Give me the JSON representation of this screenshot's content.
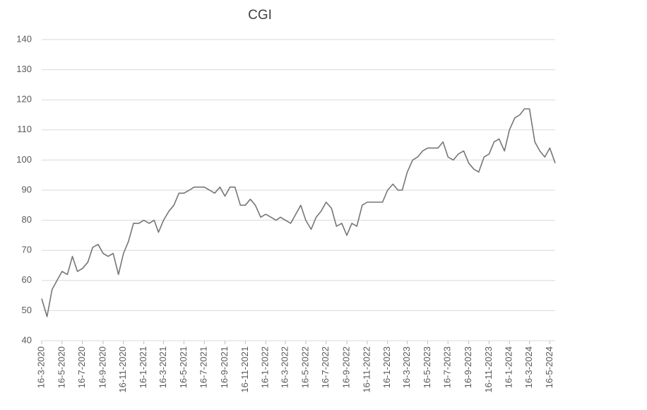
{
  "chart_data": {
    "type": "line",
    "title": "CGI",
    "color": "#767676",
    "grid": true,
    "x": [
      "2020-03-16",
      "2020-04-01",
      "2020-04-16",
      "2020-05-01",
      "2020-05-16",
      "2020-06-01",
      "2020-06-16",
      "2020-07-01",
      "2020-07-16",
      "2020-08-01",
      "2020-08-16",
      "2020-09-01",
      "2020-09-16",
      "2020-10-01",
      "2020-10-16",
      "2020-11-01",
      "2020-11-16",
      "2020-12-01",
      "2020-12-16",
      "2021-01-01",
      "2021-01-16",
      "2021-02-01",
      "2021-02-16",
      "2021-03-01",
      "2021-03-16",
      "2021-04-01",
      "2021-04-16",
      "2021-05-01",
      "2021-05-16",
      "2021-06-01",
      "2021-06-16",
      "2021-07-01",
      "2021-07-16",
      "2021-08-01",
      "2021-08-16",
      "2021-09-01",
      "2021-09-16",
      "2021-10-01",
      "2021-10-16",
      "2021-11-01",
      "2021-11-16",
      "2021-12-01",
      "2021-12-16",
      "2022-01-01",
      "2022-01-16",
      "2022-02-01",
      "2022-02-16",
      "2022-03-01",
      "2022-03-16",
      "2022-04-01",
      "2022-04-16",
      "2022-05-01",
      "2022-05-16",
      "2022-06-01",
      "2022-06-16",
      "2022-07-01",
      "2022-07-16",
      "2022-08-01",
      "2022-08-16",
      "2022-09-01",
      "2022-09-16",
      "2022-10-01",
      "2022-10-16",
      "2022-11-01",
      "2022-11-16",
      "2022-12-01",
      "2022-12-16",
      "2023-01-01",
      "2023-01-16",
      "2023-02-01",
      "2023-02-16",
      "2023-03-01",
      "2023-03-16",
      "2023-04-01",
      "2023-04-16",
      "2023-05-01",
      "2023-05-16",
      "2023-06-01",
      "2023-06-16",
      "2023-07-01",
      "2023-07-16",
      "2023-08-01",
      "2023-08-16",
      "2023-09-01",
      "2023-09-16",
      "2023-10-01",
      "2023-10-16",
      "2023-11-01",
      "2023-11-16",
      "2023-12-01",
      "2023-12-16",
      "2024-01-01",
      "2024-01-16",
      "2024-02-01",
      "2024-02-16",
      "2024-03-01",
      "2024-03-16",
      "2024-04-01",
      "2024-04-16",
      "2024-05-01",
      "2024-05-16",
      "2024-06-01"
    ],
    "values": [
      54,
      48,
      57,
      60,
      63,
      62,
      68,
      63,
      64,
      66,
      71,
      72,
      69,
      68,
      69,
      62,
      69,
      73,
      79,
      79,
      80,
      79,
      80,
      76,
      80,
      83,
      85,
      89,
      89,
      90,
      91,
      91,
      91,
      90,
      89,
      91,
      88,
      91,
      91,
      85,
      85,
      87,
      85,
      81,
      82,
      81,
      80,
      81,
      80,
      79,
      82,
      85,
      80,
      77,
      81,
      83,
      86,
      84,
      78,
      79,
      75,
      79,
      78,
      85,
      86,
      86,
      86,
      86,
      90,
      92,
      90,
      90,
      96,
      100,
      101,
      103,
      104,
      104,
      104,
      106,
      101,
      100,
      102,
      103,
      99,
      97,
      96,
      101,
      102,
      106,
      107,
      103,
      110,
      114,
      115,
      117,
      117,
      106,
      103,
      101,
      104,
      99
    ],
    "xlim": [
      "2020-03-16",
      "2024-06-01"
    ],
    "xticks": [
      {
        "value": "2020-03-16",
        "label": "16-3-2020"
      },
      {
        "value": "2020-05-16",
        "label": "16-5-2020"
      },
      {
        "value": "2020-07-16",
        "label": "16-7-2020"
      },
      {
        "value": "2020-09-16",
        "label": "16-9-2020"
      },
      {
        "value": "2020-11-16",
        "label": "16-11-2020"
      },
      {
        "value": "2021-01-16",
        "label": "16-1-2021"
      },
      {
        "value": "2021-03-16",
        "label": "16-3-2021"
      },
      {
        "value": "2021-05-16",
        "label": "16-5-2021"
      },
      {
        "value": "2021-07-16",
        "label": "16-7-2021"
      },
      {
        "value": "2021-09-16",
        "label": "16-9-2021"
      },
      {
        "value": "2021-11-16",
        "label": "16-11-2021"
      },
      {
        "value": "2022-01-16",
        "label": "16-1-2022"
      },
      {
        "value": "2022-03-16",
        "label": "16-3-2022"
      },
      {
        "value": "2022-05-16",
        "label": "16-5-2022"
      },
      {
        "value": "2022-07-16",
        "label": "16-7-2022"
      },
      {
        "value": "2022-09-16",
        "label": "16-9-2022"
      },
      {
        "value": "2022-11-16",
        "label": "16-11-2022"
      },
      {
        "value": "2023-01-16",
        "label": "16-1-2023"
      },
      {
        "value": "2023-03-16",
        "label": "16-3-2023"
      },
      {
        "value": "2023-05-16",
        "label": "16-5-2023"
      },
      {
        "value": "2023-07-16",
        "label": "16-7-2023"
      },
      {
        "value": "2023-09-16",
        "label": "16-9-2023"
      },
      {
        "value": "2023-11-16",
        "label": "16-11-2023"
      },
      {
        "value": "2024-01-16",
        "label": "16-1-2024"
      },
      {
        "value": "2024-03-16",
        "label": "16-3-2024"
      },
      {
        "value": "2024-05-16",
        "label": "16-5-2024"
      }
    ],
    "ylim": [
      40,
      140
    ],
    "yticks": [
      40,
      50,
      60,
      70,
      80,
      90,
      100,
      110,
      120,
      130,
      140
    ]
  }
}
